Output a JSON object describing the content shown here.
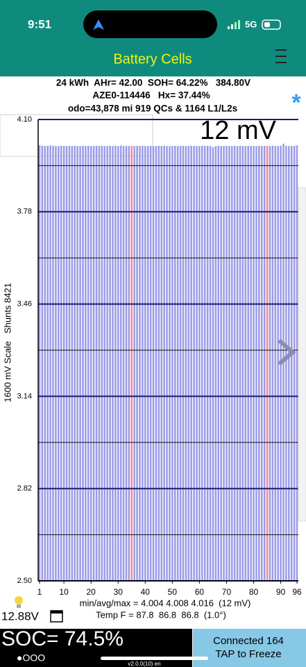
{
  "status_bar": {
    "time": "9:51",
    "network": "5G"
  },
  "header": {
    "title": "Battery Cells"
  },
  "info": {
    "line1": "24 kWh  AHr= 42.00  SOH= 64.22%   384.80V",
    "line2": "AZE0-114446   Hx= 37.44%",
    "line3": "odo=43,878 mi 919 QCs & 1164 L1/L2s",
    "star": "*"
  },
  "chart_data": {
    "type": "bar",
    "annotation": "12 mV",
    "ylabel": "1600 mV Scale   Shunts 8421",
    "x": [
      1,
      2,
      3,
      4,
      5,
      6,
      7,
      8,
      9,
      10,
      11,
      12,
      13,
      14,
      15,
      16,
      17,
      18,
      19,
      20,
      21,
      22,
      23,
      24,
      25,
      26,
      27,
      28,
      29,
      30,
      31,
      32,
      33,
      34,
      35,
      36,
      37,
      38,
      39,
      40,
      41,
      42,
      43,
      44,
      45,
      46,
      47,
      48,
      49,
      50,
      51,
      52,
      53,
      54,
      55,
      56,
      57,
      58,
      59,
      60,
      61,
      62,
      63,
      64,
      65,
      66,
      67,
      68,
      69,
      70,
      71,
      72,
      73,
      74,
      75,
      76,
      77,
      78,
      79,
      80,
      81,
      82,
      83,
      84,
      85,
      86,
      87,
      88,
      89,
      90,
      91,
      92,
      93,
      94,
      95,
      96
    ],
    "values": [
      4.011,
      4.009,
      4.008,
      4.009,
      4.01,
      4.009,
      4.008,
      4.008,
      4.009,
      4.009,
      4.008,
      4.009,
      4.008,
      4.009,
      4.008,
      4.008,
      4.009,
      4.008,
      4.009,
      4.008,
      4.008,
      4.009,
      4.008,
      4.009,
      4.008,
      4.008,
      4.009,
      4.008,
      4.009,
      4.008,
      4.01,
      4.008,
      4.009,
      4.008,
      4.008,
      4.008,
      4.009,
      4.008,
      4.009,
      4.008,
      4.008,
      4.009,
      4.008,
      4.008,
      4.009,
      4.008,
      4.009,
      4.008,
      4.008,
      4.008,
      4.009,
      4.008,
      4.008,
      4.009,
      4.008,
      4.008,
      4.009,
      4.008,
      4.008,
      4.008,
      4.009,
      4.008,
      4.009,
      4.008,
      4.004,
      4.008,
      4.009,
      4.008,
      4.008,
      4.009,
      4.008,
      4.008,
      4.009,
      4.008,
      4.009,
      4.008,
      4.008,
      4.009,
      4.008,
      4.008,
      4.008,
      4.009,
      4.008,
      4.009,
      4.008,
      4.008,
      4.009,
      4.008,
      4.008,
      4.009,
      4.016,
      4.009,
      4.008,
      4.008,
      4.009,
      4.01
    ],
    "color": "#9c9ce8",
    "shunted_cells": [
      35,
      85
    ],
    "shunt_color": "#ff8a8a",
    "xlim": [
      0.5,
      96.5
    ],
    "xticks": [
      1,
      10,
      20,
      30,
      40,
      50,
      60,
      70,
      80,
      90,
      96
    ],
    "ylim": [
      2.5,
      4.1
    ],
    "yticks": [
      {
        "value": 2.5,
        "label": "2.50"
      },
      2.82,
      3.14,
      3.46,
      3.78,
      {
        "value": 4.1,
        "label": "4.10"
      }
    ],
    "minor_yticks": [
      2.66,
      2.98,
      3.3,
      3.62,
      3.94
    ],
    "grid": true
  },
  "footer": {
    "stats": "min/avg/max = 4.004 4.008 4.016  (12 mV)",
    "temp": "Temp F = 87.8  86.8  86.8  (1.0°)",
    "voltage": "12.88V",
    "soc": "SOC= 74.5%",
    "pages": "●OOO",
    "version": "v2.0.0(10) en",
    "connected": "Connected 164",
    "freeze": "TAP to Freeze"
  }
}
